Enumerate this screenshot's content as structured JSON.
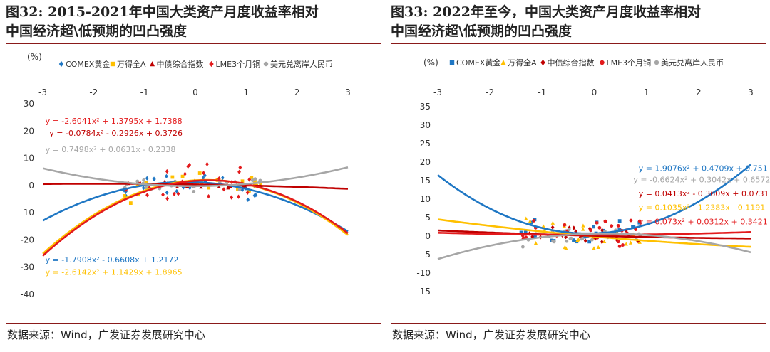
{
  "charts": [
    {
      "title_line1": "图32:  2015-2021年中国大类资产月度收益率相对",
      "title_line2": "中国经济超\\低预期的凹凸强度",
      "source": "数据来源：Wind，广发证券发展研究中心",
      "chart_data": {
        "type": "scatter",
        "yunit": "(%)",
        "xlim": [
          -3,
          3
        ],
        "ylim": [
          -40,
          30
        ],
        "xticks": [
          "-3",
          "-2",
          "-1",
          "0",
          "1",
          "2",
          "3"
        ],
        "yticks": [
          "30",
          "20",
          "10",
          "0",
          "-10",
          "-20",
          "-30",
          "-40"
        ],
        "ytick_values": [
          30,
          20,
          10,
          0,
          -10,
          -20,
          -30,
          -40
        ],
        "legend": [
          {
            "label": "COMEX黄金",
            "color": "#1f77c4",
            "marker": "diamond"
          },
          {
            "label": "万得全A",
            "color": "#ffc000",
            "marker": "square"
          },
          {
            "label": "中债综合指数",
            "color": "#c00000",
            "marker": "triangle"
          },
          {
            "label": "LME3个月铜",
            "color": "#e31a1c",
            "marker": "diamond"
          },
          {
            "label": "美元兑离岸人民币",
            "color": "#a6a6a6",
            "marker": "circle"
          }
        ],
        "series": [
          {
            "name": "COMEX黄金",
            "color": "#1f77c4",
            "fit": [
              -1.7908,
              -0.6608,
              1.2172
            ],
            "equation": "y = -1.7908x² - 0.6608x + 1.2172",
            "label_color": "#1f77c4",
            "label_at": [
              -2.95,
              -28.3
            ]
          },
          {
            "name": "万得全A",
            "color": "#ffc000",
            "fit": [
              -2.6142,
              1.1429,
              1.8965
            ],
            "equation": "y = -2.6142x² + 1.1429x + 1.8965",
            "label_color": "#ffc000",
            "label_at": [
              -2.95,
              -32.8
            ]
          },
          {
            "name": "中债综合指数",
            "color": "#c00000",
            "fit": [
              -0.0784,
              -0.2926,
              0.3726
            ],
            "equation": "y = -0.0784x² - 0.2926x + 0.3726",
            "label_color": "#c00000",
            "label_at": [
              -2.87,
              18.2
            ]
          },
          {
            "name": "LME3个月铜",
            "color": "#e31a1c",
            "fit": [
              -2.6041,
              1.3795,
              1.7388
            ],
            "equation": "y = -2.6041x² + 1.3795x + 1.7388",
            "label_color": "#e31a1c",
            "label_at": [
              -2.95,
              22.7
            ]
          },
          {
            "name": "美元兑离岸人民币",
            "color": "#a6a6a6",
            "fit": [
              0.7498,
              0.0631,
              -0.2338
            ],
            "equation": "y = 0.7498x² + 0.0631x - 0.2338",
            "label_color": "#a6a6a6",
            "label_at": [
              -2.95,
              12.2
            ]
          }
        ],
        "xrange": [
          -3,
          3
        ],
        "scatter_xrange": [
          -1.4,
          1.3
        ],
        "scatter_yspread": [
          4,
          3,
          1.5,
          6,
          2
        ],
        "scatter_seed": 11
      }
    },
    {
      "title_line1": "图33:   2022年至今，中国大类资产月度收益率相对",
      "title_line2": "中国经济超\\低预期的凹凸强度",
      "source": "数据来源：Wind，广发证券发展研究中心",
      "chart_data": {
        "type": "scatter",
        "yunit": "(%)",
        "xlim": [
          -3,
          3
        ],
        "ylim": [
          -15,
          35
        ],
        "xticks": [
          "-3",
          "-2",
          "-1",
          "0",
          "1",
          "2",
          "3"
        ],
        "yticks": [
          "35",
          "30",
          "25",
          "20",
          "15",
          "10",
          "5",
          "0",
          "-5",
          "-10",
          "-15"
        ],
        "ytick_values": [
          35,
          30,
          25,
          20,
          15,
          10,
          5,
          0,
          -5,
          -10,
          -15
        ],
        "legend": [
          {
            "label": "COMEX黄金",
            "color": "#1f77c4",
            "marker": "square"
          },
          {
            "label": "万得全A",
            "color": "#ffc000",
            "marker": "triangle"
          },
          {
            "label": "中债综合指数",
            "color": "#c00000",
            "marker": "diamond"
          },
          {
            "label": "LME3个月铜",
            "color": "#e31a1c",
            "marker": "circle"
          },
          {
            "label": "美元兑离岸人民币",
            "color": "#a6a6a6",
            "marker": "circle"
          }
        ],
        "series": [
          {
            "name": "COMEX黄金",
            "color": "#1f77c4",
            "fit": [
              1.9076,
              0.4709,
              0.751
            ],
            "equation": "y = 1.9076x² + 0.4709x + 0.751",
            "label_color": "#1f77c4",
            "label_at": [
              0.85,
              17.6
            ]
          },
          {
            "name": "万得全A",
            "color": "#ffc000",
            "fit": [
              0.1035,
              -1.2383,
              -0.1191
            ],
            "equation": "y = 0.1035x² - 1.2383x - 0.1191",
            "label_color": "#ffc000",
            "label_at": [
              0.85,
              7.0
            ]
          },
          {
            "name": "中债综合指数",
            "color": "#c00000",
            "fit": [
              0.0413,
              -0.3609,
              0.0731
            ],
            "equation": "y = 0.0413x² - 0.3609x + 0.0731",
            "label_color": "#c00000",
            "label_at": [
              0.85,
              10.8
            ]
          },
          {
            "name": "LME3个月铜",
            "color": "#e31a1c",
            "fit": [
              0.073,
              0.0312,
              0.3421
            ],
            "equation": "y = 0.073x² + 0.0312x + 0.3421",
            "label_color": "#e31a1c",
            "label_at": [
              0.85,
              3.2
            ]
          },
          {
            "name": "美元兑离岸人民币",
            "color": "#a6a6a6",
            "fit": [
              -0.6624,
              0.3042,
              0.6572
            ],
            "equation": "y = -0.6624x² + 0.3042x + 0.6572",
            "label_color": "#a6a6a6",
            "label_at": [
              0.75,
              14.5
            ]
          }
        ],
        "xrange": [
          -3,
          3
        ],
        "scatter_xrange": [
          -1.4,
          0.9
        ],
        "scatter_yspread": [
          3,
          4,
          2,
          4,
          2
        ],
        "scatter_seed": 23
      }
    }
  ]
}
